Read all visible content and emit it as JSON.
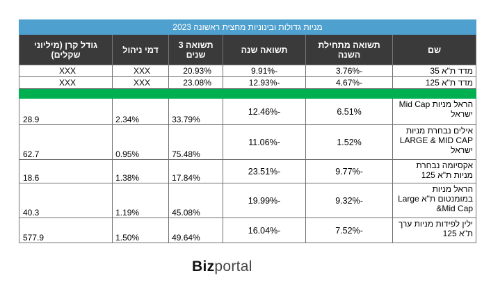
{
  "title": "מניות גדולות ובינוניות מחצית ראשונה 2023",
  "headers": {
    "name": "שם",
    "ytd": "תשואה מתחילת השנה",
    "year": "תשואה שנה",
    "three_years": "תשואה 3 שנים",
    "fee": "דמי ניהול",
    "size": "גודל קרן (מיליוני שקלים)"
  },
  "index_rows": [
    {
      "name": "מדד ת\"א 35",
      "ytd": "-3.76%",
      "year": "-9.91%",
      "three_years": "20.93%",
      "fee": "XXX",
      "size": "XXX"
    },
    {
      "name": "מדד ת\"א 125",
      "ytd": "-4.67%",
      "year": "-12.93%",
      "three_years": "23.08%",
      "fee": "XXX",
      "size": "XXX"
    }
  ],
  "fund_rows": [
    {
      "name": "הראל מניות Mid Cap ישראל",
      "ytd": "6.51%",
      "year": "-12.46%",
      "three_years": "33.79%",
      "fee": "2.34%",
      "size": "28.9"
    },
    {
      "name": "אילים נבחרת מניות LARGE & MID CAP ישראל",
      "ytd": "1.52%",
      "year": "-11.06%",
      "three_years": "75.48%",
      "fee": "0.95%",
      "size": "62.7"
    },
    {
      "name": "אקסיומה נבחרת מניות ת\"א 125",
      "ytd": "-9.77%",
      "year": "-23.51%",
      "three_years": "17.84%",
      "fee": "1.38%",
      "size": "18.6"
    },
    {
      "name": "הראל מניות במומנטום ת\"א Large &Mid Cap",
      "ytd": "-9.32%",
      "year": "-19.99%",
      "three_years": "45.08%",
      "fee": "1.19%",
      "size": "40.3"
    },
    {
      "name": "ילין לפידות מניות ערך ת\"א 125",
      "ytd": "-7.52%",
      "year": "-16.04%",
      "three_years": "49.64%",
      "fee": "1.50%",
      "size": "577.9"
    }
  ],
  "logo": {
    "part1": "Biz",
    "part2": "portal"
  },
  "colors": {
    "title_bg": "#4ea0cf",
    "header_bg": "#3a3a3a",
    "separator": "#00b050"
  }
}
